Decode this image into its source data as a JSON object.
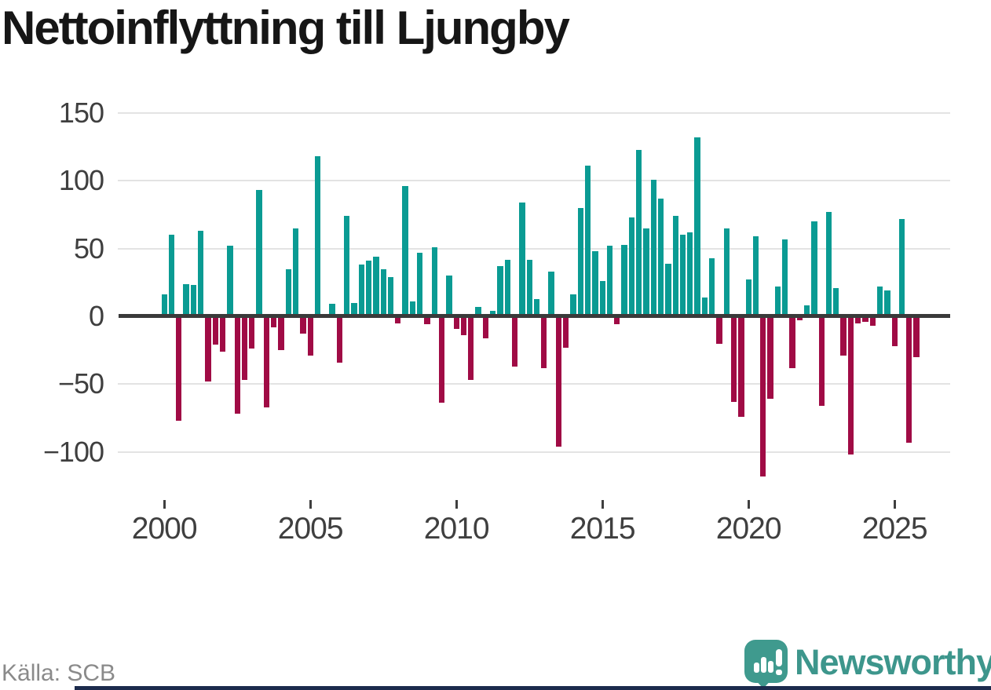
{
  "title": "Nettoinflyttning till Ljungby",
  "source": "Källa: SCB",
  "brand": {
    "name": "Newsworthy",
    "color": "#3d968c",
    "icon_color": "#3f9a8e"
  },
  "colors": {
    "positive_bar": "#0a9b93",
    "negative_bar": "#a00b45",
    "grid": "#e3e3e3",
    "zero_axis": "#3a3a3a",
    "axis_text": "#3f3f3f",
    "title_text": "#161616",
    "source_text": "#8a8a8a",
    "footer_bar": "#1c2b4d"
  },
  "chart_data": {
    "type": "bar",
    "title": "Nettoinflyttning till Ljungby",
    "frequency": "quarterly",
    "start": {
      "year": 2000,
      "quarter": 1
    },
    "end": {
      "year": 2025,
      "quarter": 4
    },
    "values": [
      16,
      60,
      -77,
      24,
      23,
      63,
      -48,
      -21,
      -26,
      52,
      -72,
      -47,
      -24,
      93,
      -67,
      -8,
      -25,
      35,
      65,
      -13,
      -29,
      118,
      0,
      9,
      -34,
      74,
      10,
      38,
      41,
      44,
      35,
      29,
      -5,
      96,
      11,
      47,
      -6,
      51,
      -64,
      30,
      -9,
      -14,
      -47,
      7,
      -16,
      4,
      37,
      42,
      -37,
      84,
      42,
      13,
      -38,
      33,
      -96,
      -23,
      16,
      80,
      111,
      48,
      26,
      52,
      -6,
      53,
      73,
      123,
      65,
      101,
      87,
      39,
      74,
      60,
      62,
      132,
      14,
      43,
      -20,
      65,
      -63,
      -74,
      27,
      59,
      -118,
      -61,
      22,
      57,
      -38,
      -3,
      8,
      70,
      -66,
      77,
      21,
      -29,
      -102,
      -5,
      -4,
      -7,
      22,
      19,
      -22,
      72,
      -93,
      -30
    ],
    "ylim": [
      -125,
      155
    ],
    "grid": true,
    "legend": false,
    "yticks": [
      {
        "label": "150",
        "value": 150
      },
      {
        "label": "100",
        "value": 100
      },
      {
        "label": "50",
        "value": 50
      },
      {
        "label": "0",
        "value": 0
      },
      {
        "label": "−50",
        "value": -50
      },
      {
        "label": "−100",
        "value": -100
      }
    ],
    "xticks": [
      {
        "label": "2000",
        "index": 0
      },
      {
        "label": "2005",
        "index": 20
      },
      {
        "label": "2010",
        "index": 40
      },
      {
        "label": "2015",
        "index": 60
      },
      {
        "label": "2020",
        "index": 80
      },
      {
        "label": "2025",
        "index": 100
      }
    ]
  }
}
